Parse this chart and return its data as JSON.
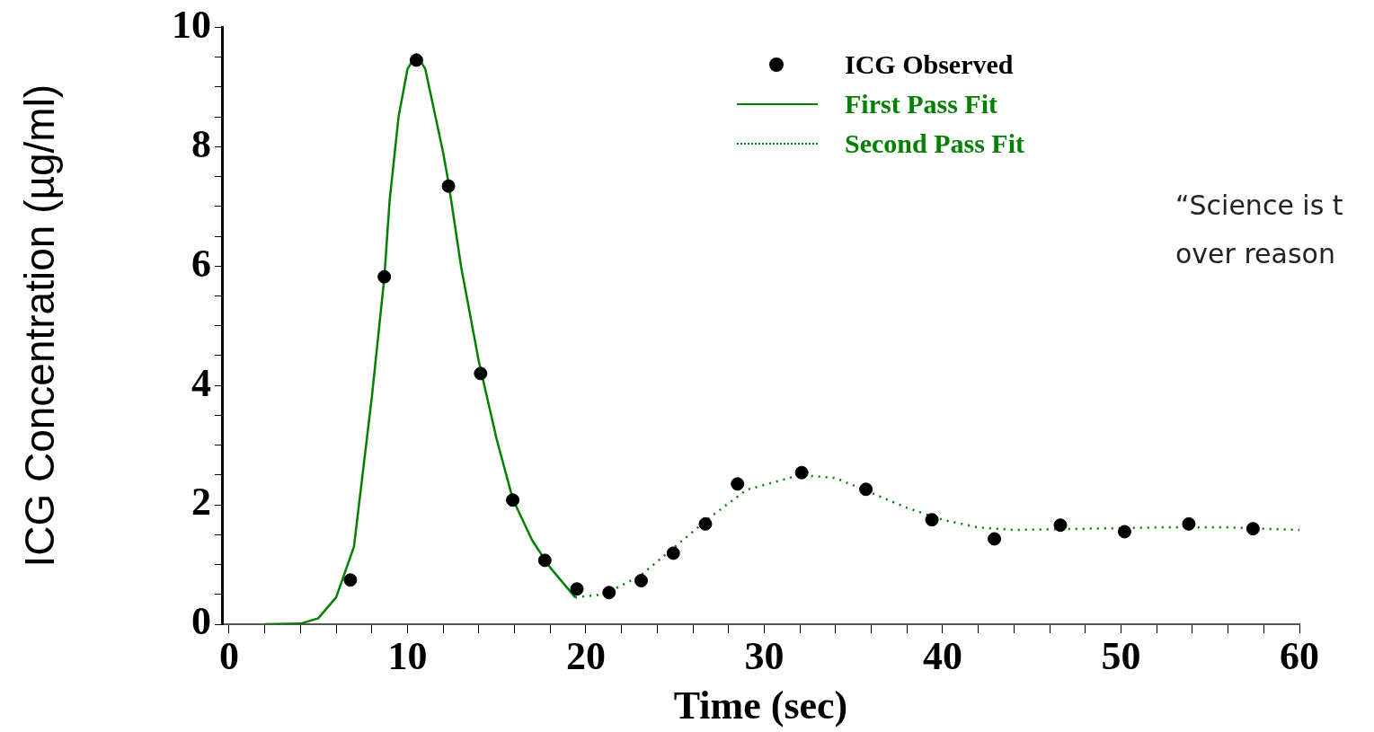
{
  "chart_data": {
    "type": "scatter",
    "xlabel": "Time (sec)",
    "ylabel": "ICG Concentration (µg/ml)",
    "xlim": [
      -0.4,
      60
    ],
    "xticks": [
      0,
      {
        "value": 2,
        "label": null
      },
      {
        "value": 4,
        "label": null
      },
      {
        "value": 6,
        "label": null
      },
      {
        "value": 8,
        "label": null
      },
      10,
      {
        "value": 12,
        "label": null
      },
      {
        "value": 14,
        "label": null
      },
      {
        "value": 16,
        "label": null
      },
      {
        "value": 18,
        "label": null
      },
      20,
      {
        "value": 22,
        "label": null
      },
      {
        "value": 24,
        "label": null
      },
      {
        "value": 26,
        "label": null
      },
      {
        "value": 28,
        "label": null
      },
      30,
      {
        "value": 32,
        "label": null
      },
      {
        "value": 34,
        "label": null
      },
      {
        "value": 36,
        "label": null
      },
      {
        "value": 38,
        "label": null
      },
      40,
      {
        "value": 42,
        "label": null
      },
      {
        "value": 44,
        "label": null
      },
      {
        "value": 46,
        "label": null
      },
      {
        "value": 48,
        "label": null
      },
      50,
      {
        "value": 52,
        "label": null
      },
      {
        "value": 54,
        "label": null
      },
      {
        "value": 56,
        "label": null
      },
      {
        "value": 58,
        "label": null
      },
      60
    ],
    "ylim": [
      0,
      10
    ],
    "yticks": [
      0,
      {
        "value": 0.5,
        "label": null
      },
      {
        "value": 1,
        "label": null
      },
      {
        "value": 1.5,
        "label": null
      },
      2,
      {
        "value": 2.5,
        "label": null
      },
      {
        "value": 3,
        "label": null
      },
      {
        "value": 3.5,
        "label": null
      },
      4,
      {
        "value": 4.5,
        "label": null
      },
      {
        "value": 5,
        "label": null
      },
      {
        "value": 5.5,
        "label": null
      },
      6,
      {
        "value": 6.5,
        "label": null
      },
      {
        "value": 7,
        "label": null
      },
      {
        "value": 7.5,
        "label": null
      },
      8,
      {
        "value": 8.5,
        "label": null
      },
      {
        "value": 9,
        "label": null
      },
      {
        "value": 9.5,
        "label": null
      },
      10
    ],
    "grid": false,
    "legend": "top",
    "marker": "circle",
    "series": [
      {
        "name": "ICG Observed",
        "color": "#000000",
        "x": [
          6.8,
          8.7,
          10.5,
          12.3,
          14.1,
          15.9,
          17.7,
          19.5,
          21.3,
          23.1,
          24.9,
          26.7,
          28.5,
          32.1,
          35.7,
          39.4,
          42.9,
          46.6,
          50.2,
          53.8,
          57.4
        ],
        "values": [
          0.74,
          5.82,
          9.45,
          7.34,
          4.2,
          2.08,
          1.07,
          0.59,
          0.53,
          0.73,
          1.19,
          1.68,
          2.35,
          2.54,
          2.26,
          1.75,
          1.43,
          1.66,
          1.55,
          1.68,
          1.6
        ]
      },
      {
        "name": "First Pass Fit",
        "type": "line",
        "marker": "none",
        "line_style": "solid",
        "color": "#008000",
        "x": [
          2,
          4,
          5,
          6,
          7,
          8,
          8.7,
          9,
          9.5,
          10,
          10.5,
          11,
          12,
          12.3,
          13,
          14,
          15,
          15.9,
          17,
          18,
          19.4
        ],
        "values": [
          0,
          0.01,
          0.1,
          0.45,
          1.3,
          3.8,
          5.8,
          7.1,
          8.5,
          9.3,
          9.55,
          9.3,
          7.9,
          7.4,
          6,
          4.4,
          3.1,
          2.1,
          1.4,
          0.95,
          0.45
        ]
      },
      {
        "name": "Second Pass Fit",
        "type": "line",
        "marker": "none",
        "line_style": "dotted",
        "color": "#008000",
        "x": [
          19.4,
          21,
          23,
          25,
          27,
          29,
          32,
          34,
          36,
          38,
          40,
          42,
          44,
          48,
          52,
          56,
          60
        ],
        "values": [
          0.45,
          0.5,
          0.8,
          1.3,
          1.8,
          2.25,
          2.5,
          2.45,
          2.2,
          1.95,
          1.75,
          1.62,
          1.58,
          1.6,
          1.62,
          1.62,
          1.58
        ]
      }
    ],
    "annotations": [
      "“Science is t\nover reason"
    ]
  }
}
